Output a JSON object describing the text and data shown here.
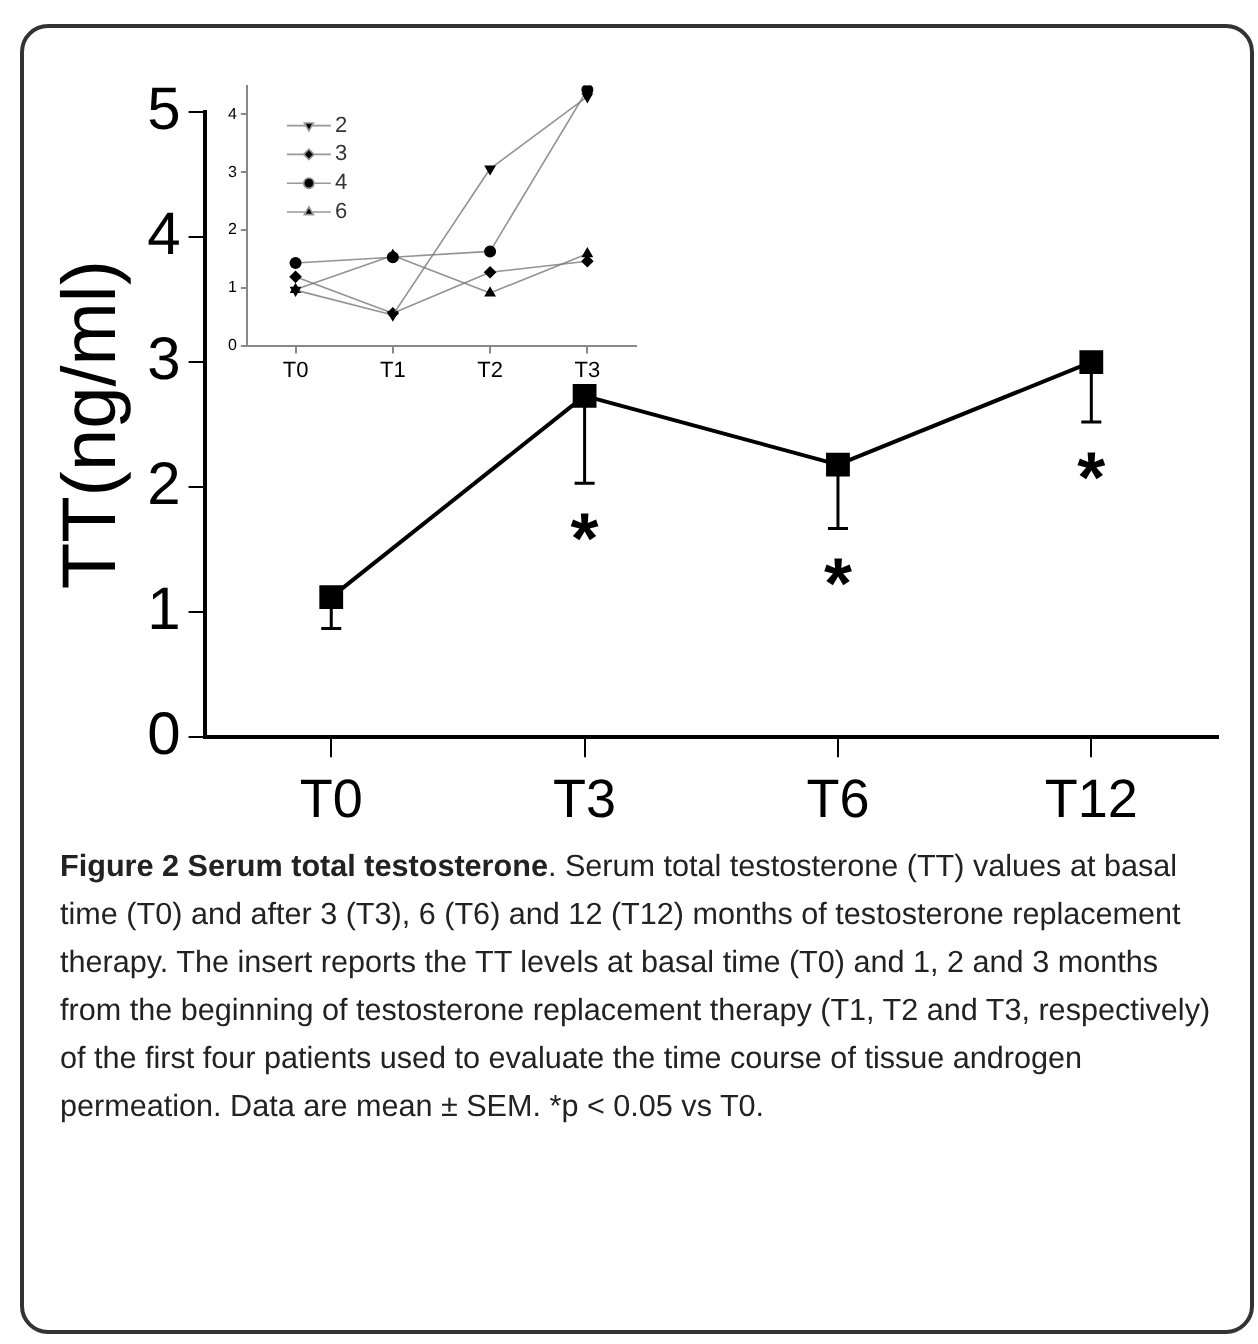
{
  "chart_data": [
    {
      "type": "line",
      "ylabel": "TT(ng/ml)",
      "categories": [
        "T0",
        "T3",
        "T6",
        "T12"
      ],
      "values": [
        1.12,
        2.73,
        2.18,
        3.0
      ],
      "errors": [
        [
          0.87,
          1.12
        ],
        [
          2.03,
          2.73
        ],
        [
          1.67,
          2.18
        ],
        [
          2.52,
          3.0
        ]
      ],
      "color": "#000000",
      "marker": "square",
      "ylim": [
        0,
        5
      ],
      "yticks": [
        0,
        1,
        2,
        3,
        4,
        5
      ],
      "value_labels": [
        null,
        "*",
        "*",
        "*"
      ],
      "annotations": [
        "Figure 2 Serum total testosterone",
        ". Serum total testosterone (TT) values at basal time (T0) and after 3 (T3), 6 (T6) and 12 (T12) months of testosterone replacement therapy. The insert reports the TT levels at basal time (T0) and 1, 2 and 3 months from the beginning of testosterone replacement therapy (T1, T2 and T3, respectively) of the first four patients used to evaluate the time course of tissue androgen permeation. Data are mean ± SEM. *p < 0.05 vs T0."
      ]
    },
    {
      "type": "line",
      "categories": [
        "T0",
        "T1",
        "T2",
        "T3"
      ],
      "ylim": [
        0,
        4.5
      ],
      "yticks": [
        0,
        1,
        2,
        3,
        4
      ],
      "legend": "top left",
      "series": [
        {
          "name": "2",
          "color": "#000000",
          "marker": "triangle-down",
          "values": [
            0.96,
            0.53,
            3.06,
            4.31
          ]
        },
        {
          "name": "3",
          "color": "#000000",
          "marker": "diamond",
          "values": [
            1.19,
            0.56,
            1.27,
            1.46
          ]
        },
        {
          "name": "4",
          "color": "#000000",
          "marker": "circle",
          "values": [
            1.43,
            1.53,
            1.63,
            4.43
          ]
        },
        {
          "name": "6",
          "color": "#000000",
          "marker": "triangle",
          "values": [
            0.97,
            1.56,
            0.91,
            1.59
          ]
        }
      ]
    }
  ]
}
